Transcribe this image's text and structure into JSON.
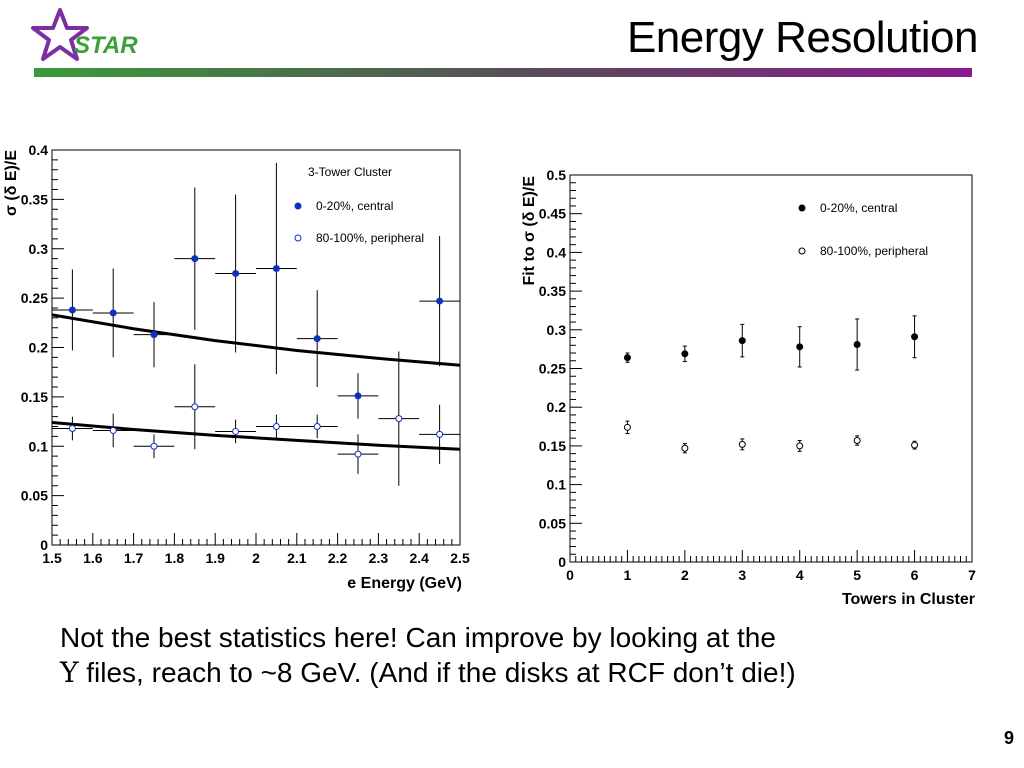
{
  "slide": {
    "title": "Energy Resolution",
    "logo_text": "STAR",
    "caption_line1": "Not the best statistics here!  Can improve by looking at the",
    "caption_upsilon": "Υ",
    "caption_line2": " files, reach to ~8 GeV. (And if the disks at RCF don’t die!)",
    "page_number": "9",
    "colors": {
      "logo_star": "#7b2fa0",
      "logo_text": "#3aa03a",
      "bar_left": "#3a9a3a",
      "bar_right": "#8a1a8e"
    }
  },
  "chart_data": [
    {
      "type": "scatter",
      "xlabel": "e Energy (GeV)",
      "ylabel": "σ (δ E)/E",
      "xlim": [
        1.5,
        2.5
      ],
      "ylim": [
        0,
        0.4
      ],
      "xticks": [
        "1.5",
        "1.6",
        "1.7",
        "1.8",
        "1.9",
        "2",
        "2.1",
        "2.2",
        "2.3",
        "2.4",
        "2.5"
      ],
      "yticks": [
        "0",
        "0.05",
        "0.1",
        "0.15",
        "0.2",
        "0.25",
        "0.3",
        "0.35",
        "0.4"
      ],
      "legend_title": "3-Tower Cluster",
      "legend_position": "top-right",
      "series": [
        {
          "name": "0-20%, central",
          "color": "#1030c0",
          "marker": "filled",
          "x": [
            1.55,
            1.65,
            1.75,
            1.85,
            1.95,
            2.05,
            2.15,
            2.25,
            2.45
          ],
          "y": [
            0.238,
            0.235,
            0.213,
            0.29,
            0.275,
            0.28,
            0.209,
            0.151,
            0.247
          ],
          "yerr": [
            0.041,
            0.045,
            0.033,
            0.072,
            0.08,
            0.107,
            0.049,
            0.023,
            0.066
          ],
          "xerr": 0.05
        },
        {
          "name": "80-100%, peripheral",
          "color": "#1030c0",
          "marker": "open",
          "x": [
            1.55,
            1.65,
            1.75,
            1.85,
            1.95,
            2.05,
            2.15,
            2.25,
            2.35,
            2.45
          ],
          "y": [
            0.118,
            0.116,
            0.1,
            0.14,
            0.115,
            0.12,
            0.12,
            0.092,
            0.128,
            0.112
          ],
          "yerr": [
            0.012,
            0.017,
            0.012,
            0.043,
            0.012,
            0.012,
            0.012,
            0.02,
            0.068,
            0.03
          ],
          "xerr": 0.05
        }
      ],
      "fits": [
        {
          "x": [
            1.5,
            1.7,
            1.9,
            2.1,
            2.3,
            2.5
          ],
          "y": [
            0.233,
            0.219,
            0.207,
            0.197,
            0.189,
            0.182
          ]
        },
        {
          "x": [
            1.5,
            1.7,
            1.9,
            2.1,
            2.3,
            2.5
          ],
          "y": [
            0.124,
            0.117,
            0.111,
            0.106,
            0.101,
            0.097
          ]
        }
      ]
    },
    {
      "type": "scatter",
      "xlabel": "Towers in Cluster",
      "ylabel": "Fit to σ (δ E)/E",
      "xlim": [
        0,
        7
      ],
      "ylim": [
        0,
        0.5
      ],
      "xticks": [
        "0",
        "1",
        "2",
        "3",
        "4",
        "5",
        "6",
        "7"
      ],
      "yticks": [
        "0",
        "0.05",
        "0.1",
        "0.15",
        "0.2",
        "0.25",
        "0.3",
        "0.35",
        "0.4",
        "0.45",
        "0.5"
      ],
      "legend_position": "top-right",
      "series": [
        {
          "name": "0-20%,   central",
          "color": "#000000",
          "marker": "filled",
          "x": [
            1,
            2,
            3,
            4,
            5,
            6
          ],
          "y": [
            0.264,
            0.269,
            0.286,
            0.278,
            0.281,
            0.291
          ],
          "yerr": [
            0.006,
            0.01,
            0.021,
            0.026,
            0.033,
            0.027
          ]
        },
        {
          "name": "80-100%, peripheral",
          "color": "#000000",
          "marker": "open",
          "x": [
            1,
            2,
            3,
            4,
            5,
            6
          ],
          "y": [
            0.174,
            0.147,
            0.152,
            0.15,
            0.157,
            0.151
          ],
          "yerr": [
            0.008,
            0.006,
            0.007,
            0.007,
            0.006,
            0.005
          ]
        }
      ]
    }
  ]
}
